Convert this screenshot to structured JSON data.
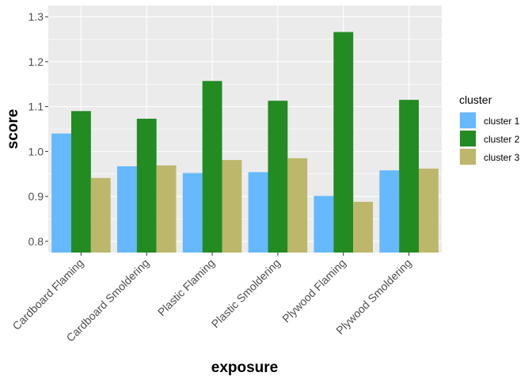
{
  "chart_data": {
    "type": "bar",
    "xlabel": "exposure",
    "ylabel": "score",
    "ylim": [
      0.775,
      1.325
    ],
    "yticks": [
      0.8,
      0.9,
      1.0,
      1.1,
      1.2,
      1.3
    ],
    "ytick_labels": [
      "0.8",
      "0.9",
      "1.0",
      "1.1",
      "1.2",
      "1.3"
    ],
    "grid": true,
    "legend": {
      "title": "cluster",
      "position": "right"
    },
    "categories": [
      "Cardboard Flaming",
      "Cardboard Smoldering",
      "Plastic Flaming",
      "Plastic Smoldering",
      "Plywood Flaming",
      "Plywood Smoldering"
    ],
    "series": [
      {
        "name": "cluster 1",
        "color": "#66b8ff",
        "values": [
          1.04,
          0.967,
          0.952,
          0.954,
          0.901,
          0.958
        ]
      },
      {
        "name": "cluster 2",
        "color": "#228b22",
        "values": [
          1.09,
          1.073,
          1.157,
          1.113,
          1.266,
          1.115
        ]
      },
      {
        "name": "cluster 3",
        "color": "#bdb76b",
        "values": [
          0.941,
          0.969,
          0.981,
          0.985,
          0.888,
          0.962
        ]
      }
    ]
  }
}
